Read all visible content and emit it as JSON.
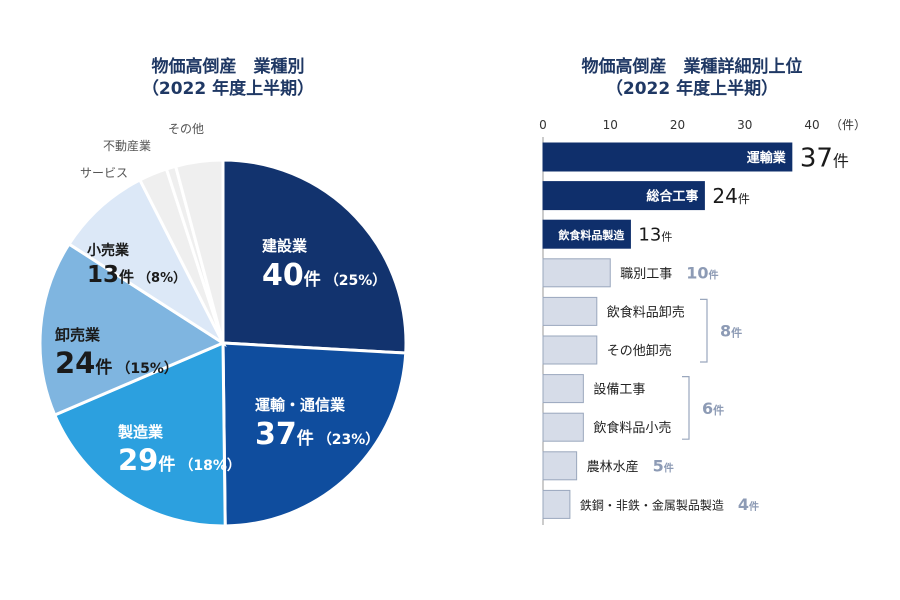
{
  "colors": {
    "title": "#1f3864",
    "bar_top": "#0f2f6b",
    "bar_other": "#d6dce8",
    "bar_other_stroke": "#9aa7bd",
    "count_other": "#8d9bb5",
    "pie_other": "#efefef",
    "label_gray": "#555555",
    "axis": "#999999"
  },
  "chart_data": [
    {
      "type": "pie",
      "title": "物価高倒産　業種別",
      "subtitle": "（2022 年度上半期）",
      "unit": "件",
      "slices": [
        {
          "label": "建設業",
          "value": 40,
          "percent": "（25%）",
          "color": "#12336e"
        },
        {
          "label": "運輸・通信業",
          "value": 37,
          "percent": "（23%）",
          "color": "#0f4d9e"
        },
        {
          "label": "製造業",
          "value": 29,
          "percent": "（18%）",
          "color": "#2ca0df"
        },
        {
          "label": "卸売業",
          "value": 24,
          "percent": "（15%）",
          "color": "#7fb5e0"
        },
        {
          "label": "小売業",
          "value": 13,
          "percent": "（8%）",
          "color": "#dce8f7"
        },
        {
          "label": "サービス",
          "value": 0,
          "percent": "",
          "color": "#efefef"
        },
        {
          "label": "不動産業",
          "value": 0,
          "percent": "",
          "color": "#efefef"
        },
        {
          "label": "その他",
          "value": 0,
          "percent": "",
          "color": "#efefef"
        }
      ]
    },
    {
      "type": "bar",
      "orientation": "horizontal",
      "title": "物価高倒産　業種詳細別上位",
      "subtitle": "（2022 年度上半期）",
      "xlim": [
        0,
        40
      ],
      "x_ticks": [
        0,
        10,
        20,
        30,
        40
      ],
      "x_unit": "（件）",
      "count_suffix": "件",
      "categories": [
        "運輸業",
        "総合工事",
        "飲食料品製造",
        "職別工事",
        "飲食料品卸売",
        "その他卸売",
        "設備工事",
        "飲食料品小売",
        "農林水産",
        "鉄鋼・非鉄・金属製品製造"
      ],
      "values": [
        37,
        24,
        13,
        10,
        8,
        8,
        6,
        6,
        5,
        4
      ],
      "count_labels": [
        "37",
        "24",
        "13",
        "10",
        "",
        "",
        "",
        "",
        "5",
        "4"
      ],
      "group_labels": [
        {
          "from": 4,
          "to": 5,
          "value": "8"
        },
        {
          "from": 6,
          "to": 7,
          "value": "6"
        }
      ]
    }
  ]
}
